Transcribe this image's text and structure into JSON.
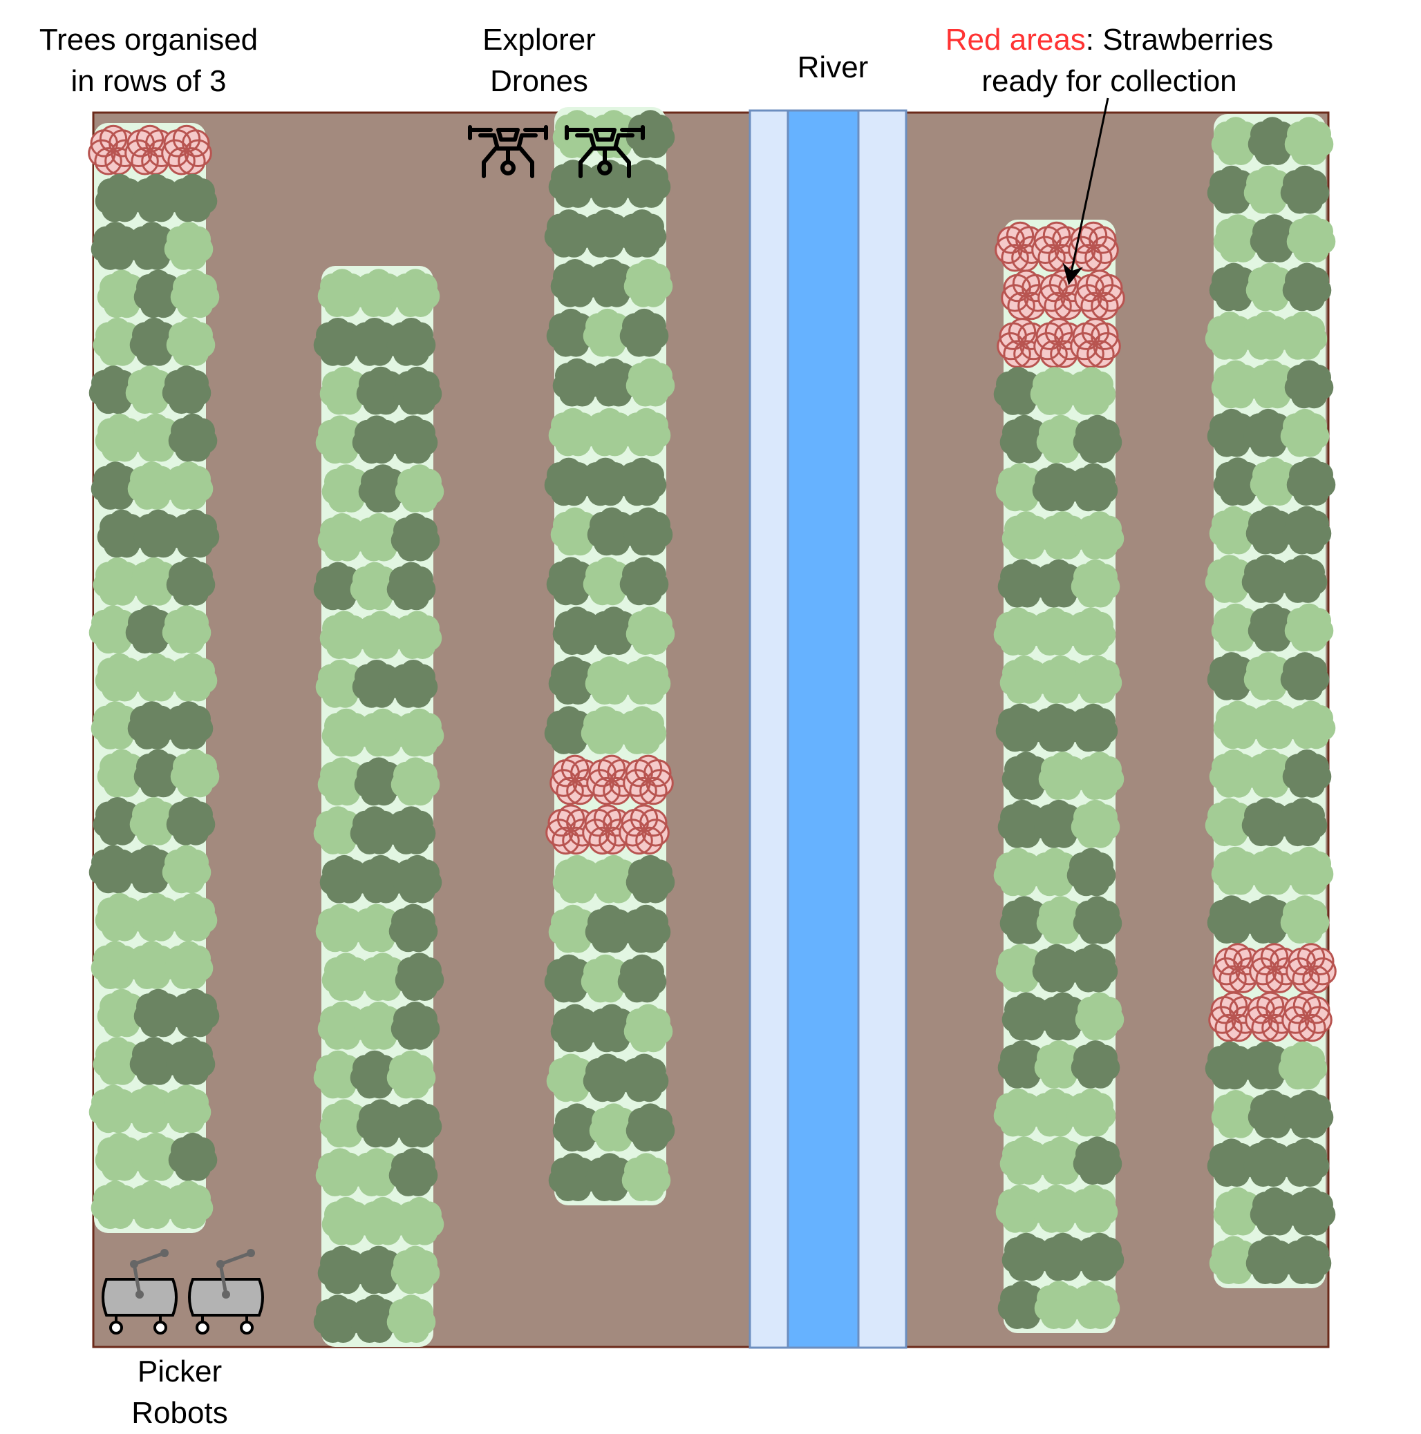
{
  "labels": {
    "trees_line1": "Trees organised",
    "trees_line2": "in rows of 3",
    "drones_line1": "Explorer",
    "drones_line2": "Drones",
    "river": "River",
    "red_prefix": "Red areas",
    "red_rest": ": Strawberries",
    "red_line2": "ready for collection",
    "picker_line1": "Picker",
    "picker_line2": "Robots"
  },
  "colors": {
    "soil": "#a38a7e",
    "soil_border": "#6b2a1a",
    "row_bg": "#e2f6e2",
    "tree_dark": "#6b8462",
    "tree_light": "#a3cc95",
    "ripe_fill": "#f5caca",
    "ripe_stroke": "#b85450",
    "river_water": "#66b2ff",
    "river_bank": "#dae8fc",
    "river_stroke": "#6c8ebf",
    "robot_body": "#b3b3b3",
    "highlight_text": "#ff3333"
  },
  "icons": {
    "drone": "drone-icon",
    "robot": "picker-robot-icon",
    "tree": "tree-cluster-icon"
  },
  "farm": {
    "tree_rows": [
      {
        "name": "row-1",
        "tree_lines": 23,
        "ripe_lines": [
          0
        ]
      },
      {
        "name": "row-2",
        "tree_lines": 22,
        "ripe_lines": []
      },
      {
        "name": "row-3",
        "tree_lines": 22,
        "ripe_lines": [
          13,
          14
        ]
      },
      {
        "name": "row-4",
        "tree_lines": 23,
        "ripe_lines": [
          0,
          1,
          2
        ]
      },
      {
        "name": "row-5",
        "tree_lines": 24,
        "ripe_lines": [
          17,
          18
        ]
      }
    ],
    "drones": 2,
    "robots": 2
  }
}
